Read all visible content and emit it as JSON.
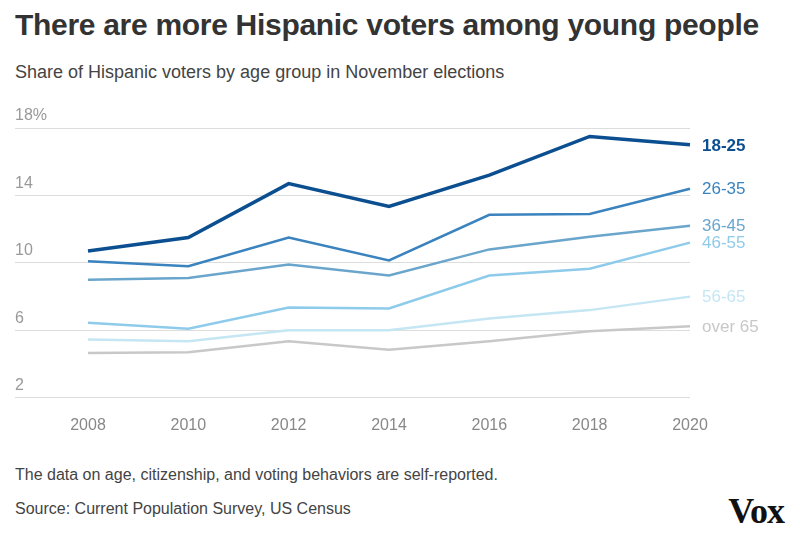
{
  "chart_data": {
    "type": "line",
    "title": "There are more Hispanic voters among young people",
    "subtitle": "Share of Hispanic voters by age group in November elections",
    "note": "The data on age, citizenship, and voting behaviors are self-reported.",
    "source": "Source: Current Population Survey, US Census",
    "logo": "Vox",
    "categories": [
      "2008",
      "2010",
      "2012",
      "2014",
      "2016",
      "2018",
      "2020"
    ],
    "series": [
      {
        "name": "18-25",
        "color": "#0b4f91",
        "values": [
          10.7,
          11.5,
          14.7,
          13.35,
          15.2,
          17.5,
          17.0
        ]
      },
      {
        "name": "26-35",
        "color": "#3a83bf",
        "values": [
          10.1,
          9.8,
          11.5,
          10.15,
          12.85,
          12.9,
          14.4
        ]
      },
      {
        "name": "36-45",
        "color": "#6aa5cc",
        "values": [
          9.0,
          9.1,
          9.9,
          9.25,
          10.8,
          11.55,
          12.2
        ]
      },
      {
        "name": "46-55",
        "color": "#8ecbeb",
        "values": [
          6.45,
          6.1,
          7.35,
          7.3,
          9.25,
          9.65,
          11.2
        ]
      },
      {
        "name": "56-65",
        "color": "#c5e6f3",
        "values": [
          5.45,
          5.35,
          6.0,
          6.0,
          6.7,
          7.2,
          8.0
        ]
      },
      {
        "name": "over 65",
        "color": "#c8c8c8",
        "values": [
          4.65,
          4.7,
          5.35,
          4.85,
          5.35,
          5.95,
          6.25
        ]
      }
    ],
    "ylim": [
      2,
      18
    ],
    "yticks": [
      2,
      6,
      10,
      14,
      {
        "value": 18,
        "label": "18%"
      }
    ],
    "grid": true
  }
}
